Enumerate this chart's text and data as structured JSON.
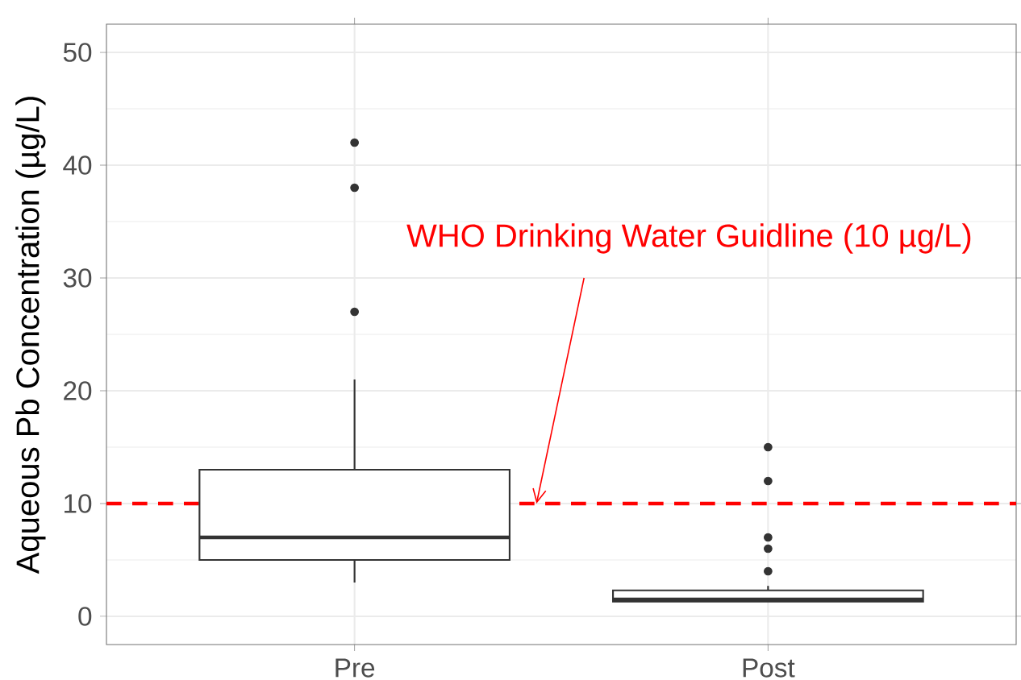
{
  "chart_data": {
    "type": "box",
    "ylabel": "Aqueous Pb Concentration (µg/L)",
    "categories": [
      "Pre",
      "Post"
    ],
    "boxes": [
      {
        "low": 3,
        "q1": 5,
        "median": 7,
        "q3": 13,
        "high": 21,
        "outliers": [
          27,
          38,
          42
        ]
      },
      {
        "low": 1.3,
        "q1": 1.3,
        "median": 1.5,
        "q3": 2.3,
        "high": 2.7,
        "outliers": [
          4,
          6,
          7,
          12,
          15
        ]
      }
    ],
    "ylim": [
      -2.5,
      52.5
    ],
    "yticks": [
      0,
      10,
      20,
      30,
      40,
      50
    ],
    "grid": true,
    "ref_lines": [
      {
        "axis": "y",
        "value": 10,
        "label": "WHO Drinking Water Guidline (10 µg/L)",
        "color": "#ff0000",
        "line_style": "dashed"
      }
    ]
  }
}
